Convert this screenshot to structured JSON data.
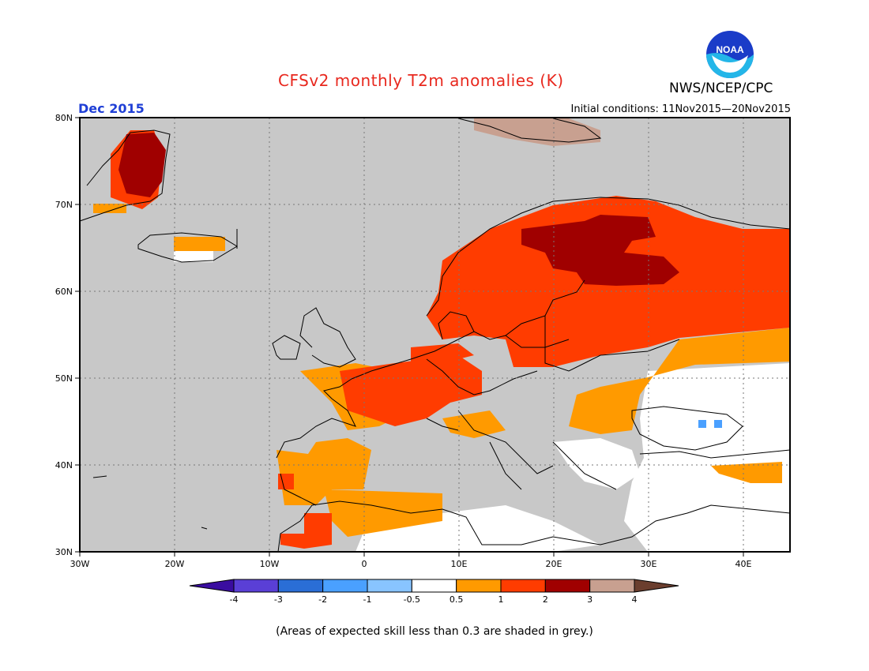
{
  "title": "CFSv2 monthly T2m anomalies (K)",
  "period": "Dec 2015",
  "initial_conditions": "Initial conditions: 11Nov2015—20Nov2015",
  "agency": "NWS/NCEP/CPC",
  "logo_text": "NOAA",
  "footnote": "(Areas of expected skill less than 0.3 are shaded in grey.)",
  "colors": {
    "skill_grey": "#c8c8c8",
    "neutral": "#ffffff",
    "bin_0_5_1": "#ff9a00",
    "bin_1_2": "#ff3c00",
    "bin_2_3": "#a00000",
    "bin_3_4": "#c8a090",
    "title_red": "#e8281e",
    "date_blue": "#1f3fd6"
  },
  "map": {
    "lat_labels": [
      "80N",
      "70N",
      "60N",
      "50N",
      "40N",
      "30N"
    ],
    "lon_labels": [
      "30W",
      "20W",
      "10W",
      "0",
      "10E",
      "20E",
      "30E",
      "40E"
    ]
  },
  "colorbar": {
    "labels": [
      "-4",
      "-3",
      "-2",
      "-1",
      "-0.5",
      "0.5",
      "1",
      "2",
      "3",
      "4"
    ],
    "colors": [
      "#3a0da0",
      "#5a3fd6",
      "#2a6ed6",
      "#4aa0ff",
      "#88c4ff",
      "#ffffff",
      "#ff9a00",
      "#ff3c00",
      "#a00000",
      "#c8a090",
      "#6b3e2e"
    ]
  }
}
